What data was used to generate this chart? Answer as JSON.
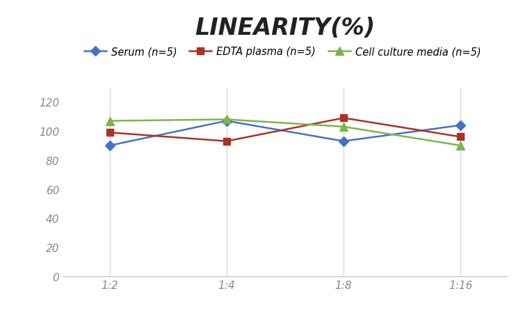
{
  "title": "LINEARITY(%)",
  "x_labels": [
    "1:2",
    "1:4",
    "1:8",
    "1:16"
  ],
  "x_positions": [
    0,
    1,
    2,
    3
  ],
  "series": [
    {
      "label": "Serum (n=5)",
      "values": [
        90,
        107,
        93,
        104
      ],
      "color": "#4472C4",
      "marker": "D",
      "marker_size": 7,
      "linewidth": 1.8
    },
    {
      "label": "EDTA plasma (n=5)",
      "values": [
        99,
        93,
        109,
        96
      ],
      "color": "#A93226",
      "marker": "s",
      "marker_size": 7,
      "linewidth": 1.8
    },
    {
      "label": "Cell culture media (n=5)",
      "values": [
        107,
        108,
        103,
        90
      ],
      "color": "#7AB648",
      "marker": "^",
      "marker_size": 8,
      "linewidth": 1.8
    }
  ],
  "ylim": [
    0,
    130
  ],
  "yticks": [
    0,
    20,
    40,
    60,
    80,
    100,
    120
  ],
  "background_color": "#FFFFFF",
  "grid_color": "#D0D0D0",
  "title_fontsize": 24,
  "legend_fontsize": 10.5,
  "tick_fontsize": 11,
  "title_style": "italic",
  "title_weight": "bold",
  "tick_color": "#888888"
}
